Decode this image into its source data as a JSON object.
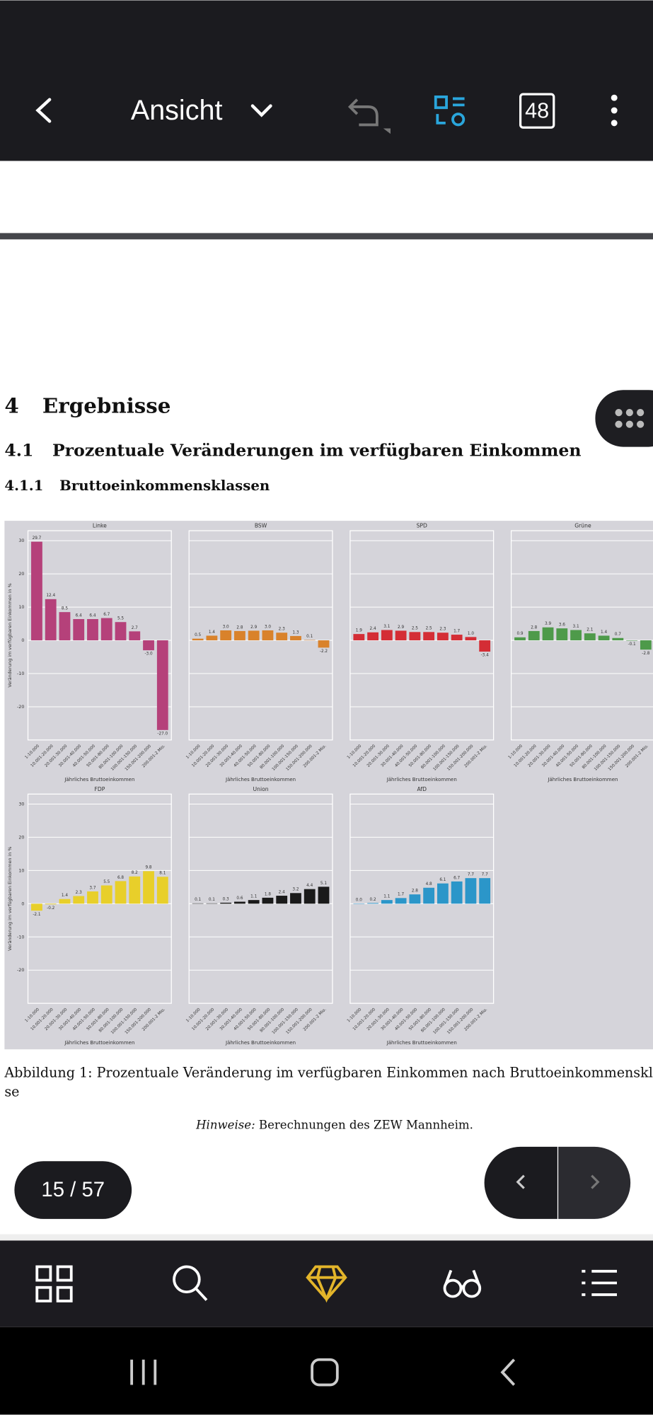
{
  "toolbar": {
    "title": "Ansicht",
    "page_count_badge": "48"
  },
  "document": {
    "heading": {
      "number": "4",
      "text": "Ergebnisse"
    },
    "subheading": {
      "number": "4.1",
      "text": "Prozentuale Veränderungen im verfügbaren Einkommen"
    },
    "subsubheading": {
      "number": "4.1.1",
      "text": "Bruttoeinkommensklassen"
    },
    "caption": [
      "Abbildung 1: Prozentuale Veränderung im verfügbaren Einkommen nach Bruttoeinkommenskla",
      "se"
    ],
    "note": {
      "label": "Hinweise:",
      "text": "Berechnungen des ZEW Mannheim."
    }
  },
  "chart_data": [
    {
      "type": "bar",
      "title": "Linke",
      "color": "#b5417a",
      "xlabel": "Jährliches Bruttoeinkommen",
      "ylabel": "Veränderung im verfügbaren Einkommen in %",
      "categories": [
        "1-10.000",
        "10.001-20.000",
        "20.001-30.000",
        "30.001-40.000",
        "40.001-50.000",
        "50.001-80.000",
        "80.001-100.000",
        "100.001-150.000",
        "150.001-200.000",
        "200.001-2 Mio."
      ],
      "values": [
        29.7,
        12.4,
        8.5,
        6.4,
        6.4,
        6.7,
        5.5,
        2.7,
        -3.0,
        -27.0
      ],
      "value_labels": [
        "29.7",
        "12.4",
        "8.5",
        "6.4",
        "6.4",
        "6.7",
        "5.5",
        "2.7",
        "-3.0",
        "-27.0"
      ],
      "ylim": [
        -30,
        33
      ],
      "yticks": [
        -20,
        -10,
        0,
        10,
        20,
        30
      ],
      "grid": true
    },
    {
      "type": "bar",
      "title": "BSW",
      "color": "#d9822b",
      "xlabel": "Jährliches Bruttoeinkommen",
      "categories": [
        "1-10.000",
        "10.001-20.000",
        "20.001-30.000",
        "30.001-40.000",
        "40.001-50.000",
        "50.001-80.000",
        "80.001-100.000",
        "100.001-150.000",
        "150.001-200.000",
        "200.001-2 Mio."
      ],
      "values": [
        0.5,
        1.4,
        3.0,
        2.8,
        2.9,
        3.0,
        2.3,
        1.3,
        0.1,
        -2.2
      ],
      "value_labels": [
        "0.5",
        "1.4",
        "3.0",
        "2.8",
        "2.9",
        "3.0",
        "2.3",
        "1.3",
        "0.1",
        "-2.2"
      ],
      "ylim": [
        -30,
        33
      ],
      "yticks": [
        -20,
        -10,
        0,
        10,
        20,
        30
      ],
      "grid": true
    },
    {
      "type": "bar",
      "title": "SPD",
      "color": "#d42d35",
      "xlabel": "Jährliches Bruttoeinkommen",
      "categories": [
        "1-10.000",
        "10.001-20.000",
        "20.001-30.000",
        "30.001-40.000",
        "40.001-50.000",
        "50.001-80.000",
        "80.001-100.000",
        "100.001-150.000",
        "150.001-200.000",
        "200.001-2 Mio."
      ],
      "values": [
        1.9,
        2.4,
        3.1,
        2.9,
        2.5,
        2.5,
        2.3,
        1.7,
        1.0,
        -3.4
      ],
      "value_labels": [
        "1.9",
        "2.4",
        "3.1",
        "2.9",
        "2.5",
        "2.5",
        "2.3",
        "1.7",
        "1.0",
        "-3.4"
      ],
      "ylim": [
        -30,
        33
      ],
      "yticks": [
        -20,
        -10,
        0,
        10,
        20,
        30
      ],
      "grid": true
    },
    {
      "type": "bar",
      "title": "Grüne",
      "color": "#4e9a4a",
      "xlabel": "Jährliches Bruttoeinkommen",
      "categories": [
        "1-10.000",
        "10.001-20.000",
        "20.001-30.000",
        "30.001-40.000",
        "40.001-50.000",
        "50.001-80.000",
        "80.001-100.000",
        "100.001-150.000",
        "150.001-200.000",
        "200.001-2 Mio."
      ],
      "values": [
        0.9,
        2.8,
        3.9,
        3.6,
        3.1,
        2.1,
        1.4,
        0.7,
        -0.1,
        -2.8
      ],
      "value_labels": [
        "0.9",
        "2.8",
        "3.9",
        "3.6",
        "3.1",
        "2.1",
        "1.4",
        "0.7",
        "-0.1",
        "-2.8"
      ],
      "ylim": [
        -30,
        33
      ],
      "yticks": [
        -20,
        -10,
        0,
        10,
        20,
        30
      ],
      "grid": true
    },
    {
      "type": "bar",
      "title": "FDP",
      "color": "#e8cf2a",
      "xlabel": "Jährliches Bruttoeinkommen",
      "ylabel": "Veränderung im verfügbaren Einkommen in %",
      "categories": [
        "1-10.000",
        "10.001-20.000",
        "20.001-30.000",
        "30.001-40.000",
        "40.001-50.000",
        "50.001-80.000",
        "80.001-100.000",
        "100.001-150.000",
        "150.001-200.000",
        "200.001-2 Mio."
      ],
      "values": [
        -2.1,
        -0.2,
        1.4,
        2.3,
        3.7,
        5.5,
        6.8,
        8.2,
        9.8,
        8.1
      ],
      "value_labels": [
        "-2.1",
        "-0.2",
        "1.4",
        "2.3",
        "3.7",
        "5.5",
        "6.8",
        "8.2",
        "9.8",
        "8.1"
      ],
      "ylim": [
        -30,
        33
      ],
      "yticks": [
        -20,
        -10,
        0,
        10,
        20,
        30
      ],
      "grid": true
    },
    {
      "type": "bar",
      "title": "Union",
      "color": "#1a1a1a",
      "xlabel": "Jährliches Bruttoeinkommen",
      "categories": [
        "1-10.000",
        "10.001-20.000",
        "20.001-30.000",
        "30.001-40.000",
        "40.001-50.000",
        "50.001-80.000",
        "80.001-100.000",
        "100.001-150.000",
        "150.001-200.000",
        "200.001-2 Mio."
      ],
      "values": [
        0.1,
        0.1,
        0.3,
        0.6,
        1.1,
        1.8,
        2.4,
        3.2,
        4.4,
        5.1
      ],
      "value_labels": [
        "0.1",
        "0.1",
        "0.3",
        "0.6",
        "1.1",
        "1.8",
        "2.4",
        "3.2",
        "4.4",
        "5.1"
      ],
      "ylim": [
        -30,
        33
      ],
      "yticks": [
        -20,
        -10,
        0,
        10,
        20,
        30
      ],
      "grid": true
    },
    {
      "type": "bar",
      "title": "AfD",
      "color": "#2b96c9",
      "xlabel": "Jährliches Bruttoeinkommen",
      "categories": [
        "1-10.000",
        "10.001-20.000",
        "20.001-30.000",
        "30.001-40.000",
        "40.001-50.000",
        "50.001-80.000",
        "80.001-100.000",
        "100.001-150.000",
        "150.001-200.000",
        "200.001-2 Mio."
      ],
      "values": [
        0.0,
        0.2,
        1.1,
        1.7,
        2.8,
        4.8,
        6.1,
        6.7,
        7.7,
        7.7
      ],
      "value_labels": [
        "0.0",
        "0.2",
        "1.1",
        "1.7",
        "2.8",
        "4.8",
        "6.1",
        "6.7",
        "7.7",
        "7.7"
      ],
      "ylim": [
        -30,
        33
      ],
      "yticks": [
        -20,
        -10,
        0,
        10,
        20,
        30
      ],
      "grid": true
    }
  ],
  "page_indicator": "15 / 57"
}
